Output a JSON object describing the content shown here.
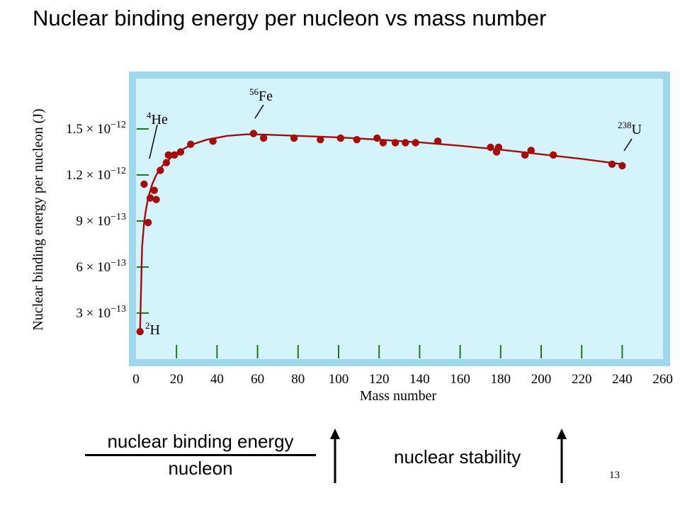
{
  "slide": {
    "title": "Nuclear binding energy per nucleon vs mass number",
    "fraction_numerator": "nuclear binding energy",
    "fraction_denominator": "nucleon",
    "stability_label": "nuclear stability",
    "page_number": "13"
  },
  "chart_data": {
    "type": "scatter",
    "title": "",
    "xlabel": "Mass number",
    "ylabel": "Nuclear binding energy per nucleon (J)",
    "xlim": [
      0,
      260
    ],
    "ylim": [
      0,
      1.8e-12
    ],
    "xticks": [
      0,
      20,
      40,
      60,
      80,
      100,
      120,
      140,
      160,
      180,
      200,
      220,
      240,
      260
    ],
    "yticks": [
      {
        "value": 3e-13,
        "mantissa": "3",
        "exponent": "−13"
      },
      {
        "value": 6e-13,
        "mantissa": "6",
        "exponent": "−13"
      },
      {
        "value": 9e-13,
        "mantissa": "9",
        "exponent": "−13"
      },
      {
        "value": 1.2e-12,
        "mantissa": "1.2",
        "exponent": "−12"
      },
      {
        "value": 1.5e-12,
        "mantissa": "1.5",
        "exponent": "−12"
      }
    ],
    "colors": {
      "series": "#a50d0d",
      "panel": "#d5f3fa",
      "frame": "#9ed8ec",
      "tick": "#1a7a1a"
    },
    "points": [
      [
        2,
        1.79e-13
      ],
      [
        4,
        1.14e-12
      ],
      [
        6,
        8.9e-13
      ],
      [
        7,
        1.05e-12
      ],
      [
        9,
        1.1e-12
      ],
      [
        10,
        1.04e-12
      ],
      [
        12,
        1.23e-12
      ],
      [
        15,
        1.28e-12
      ],
      [
        16,
        1.33e-12
      ],
      [
        19,
        1.33e-12
      ],
      [
        22,
        1.35e-12
      ],
      [
        27,
        1.4e-12
      ],
      [
        38,
        1.42e-12
      ],
      [
        58,
        1.47e-12
      ],
      [
        63,
        1.44e-12
      ],
      [
        78,
        1.44e-12
      ],
      [
        91,
        1.43e-12
      ],
      [
        101,
        1.44e-12
      ],
      [
        109,
        1.43e-12
      ],
      [
        119,
        1.44e-12
      ],
      [
        122,
        1.41e-12
      ],
      [
        128,
        1.41e-12
      ],
      [
        133,
        1.41e-12
      ],
      [
        138,
        1.41e-12
      ],
      [
        149,
        1.42e-12
      ],
      [
        175,
        1.38e-12
      ],
      [
        178,
        1.35e-12
      ],
      [
        179,
        1.38e-12
      ],
      [
        192,
        1.33e-12
      ],
      [
        195,
        1.36e-12
      ],
      [
        206,
        1.33e-12
      ],
      [
        235,
        1.27e-12
      ],
      [
        240,
        1.26e-12
      ]
    ],
    "curve": [
      [
        2,
        1.79e-13
      ],
      [
        3,
        7.3e-13
      ],
      [
        4,
        8.9e-13
      ],
      [
        5,
        9.8e-13
      ],
      [
        6,
        1.05e-12
      ],
      [
        8,
        1.14e-12
      ],
      [
        10,
        1.2e-12
      ],
      [
        13,
        1.26e-12
      ],
      [
        17,
        1.31e-12
      ],
      [
        22,
        1.36e-12
      ],
      [
        28,
        1.4e-12
      ],
      [
        35,
        1.43e-12
      ],
      [
        45,
        1.455e-12
      ],
      [
        55,
        1.465e-12
      ],
      [
        65,
        1.462e-12
      ],
      [
        80,
        1.455e-12
      ],
      [
        100,
        1.445e-12
      ],
      [
        120,
        1.43e-12
      ],
      [
        140,
        1.413e-12
      ],
      [
        160,
        1.39e-12
      ],
      [
        180,
        1.365e-12
      ],
      [
        200,
        1.335e-12
      ],
      [
        220,
        1.305e-12
      ],
      [
        240,
        1.27e-12
      ]
    ],
    "annotations": [
      {
        "label": "He",
        "mass_number": "4",
        "x": 4,
        "y": 1.14e-12
      },
      {
        "label": "Fe",
        "mass_number": "56",
        "x": 58,
        "y": 1.47e-12
      },
      {
        "label": "U",
        "mass_number": "238",
        "x": 240,
        "y": 1.26e-12
      },
      {
        "label": "H",
        "mass_number": "2",
        "x": 2,
        "y": 1.79e-13
      }
    ]
  }
}
